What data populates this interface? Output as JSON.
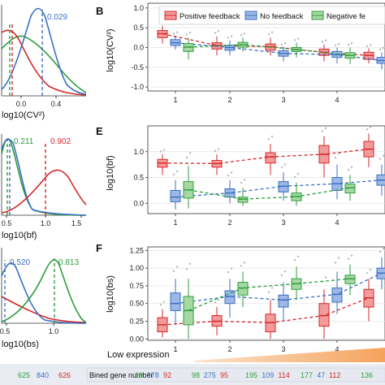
{
  "colors": {
    "positive": "#d62728",
    "none": "#3b6fc2",
    "negative": "#2e9e3e",
    "positive_fill": "#f29b9b",
    "none_fill": "#9db8e6",
    "negative_fill": "#a6d8a3",
    "arrow": "#f5a35c"
  },
  "panel_labels": {
    "B": "B",
    "E": "E",
    "F": "F"
  },
  "left": {
    "a": {
      "xlabel": "log10(CV²)",
      "xticks": [
        "0.0",
        "0.4"
      ],
      "annotation": "0.029"
    },
    "d": {
      "xlabel": "log10(bf)",
      "xticks": [
        "0.5",
        "1.0",
        "1.5"
      ],
      "annotations": [
        "0.211",
        "0.902"
      ]
    },
    "g": {
      "xlabel": "log10(bs)",
      "xticks": [
        "0.5",
        "1.0"
      ],
      "annotations": [
        "0.520",
        "0.813"
      ]
    },
    "totals": [
      "625",
      "840",
      "626"
    ]
  },
  "legend": [
    "Positive feedback",
    "No feedback",
    "Negative fe"
  ],
  "low_expression": "Low expression",
  "bined_label": "Bined gene number",
  "bined_counts": [
    [
      "19",
      "378",
      "92"
    ],
    [
      "98",
      "275",
      "95"
    ],
    [
      "195",
      "109",
      "114"
    ],
    [
      "177",
      "47",
      "112"
    ],
    [
      "136"
    ]
  ],
  "chart_data": [
    {
      "type": "box",
      "panel": "B",
      "ylabel": "log10(CV²)",
      "xticks": [
        "1",
        "2",
        "3",
        "4"
      ],
      "yticks": [
        "-1.0",
        "-0.5",
        "0.0",
        "0.5",
        "1.0"
      ],
      "ylim": [
        -1.1,
        1.12
      ],
      "series": [
        {
          "name": "Positive feedback",
          "medians": [
            0.35,
            0.05,
            0.02,
            -0.12,
            -0.2
          ],
          "q1": [
            0.25,
            -0.04,
            -0.07,
            -0.2,
            -0.3
          ],
          "q3": [
            0.43,
            0.12,
            0.09,
            -0.04,
            -0.12
          ],
          "lo": [
            0.1,
            -0.2,
            -0.2,
            -0.35,
            -0.4
          ],
          "hi": [
            0.55,
            0.28,
            0.25,
            0.08,
            -0.02
          ]
        },
        {
          "name": "No feedback",
          "medians": [
            0.12,
            0.0,
            -0.15,
            -0.18,
            -0.33
          ],
          "q1": [
            0.05,
            -0.07,
            -0.22,
            -0.25,
            -0.4
          ],
          "q3": [
            0.2,
            0.06,
            -0.08,
            -0.1,
            -0.25
          ],
          "lo": [
            -0.05,
            -0.2,
            -0.35,
            -0.4,
            -0.55
          ],
          "hi": [
            0.3,
            0.18,
            0.02,
            0.0,
            -0.12
          ]
        },
        {
          "name": "Negative feedback",
          "medians": [
            0.01,
            0.07,
            -0.05,
            -0.2,
            -0.4
          ],
          "q1": [
            -0.1,
            0.01,
            -0.1,
            -0.27,
            -0.47
          ],
          "q3": [
            0.1,
            0.13,
            0.0,
            -0.13,
            -0.33
          ],
          "lo": [
            -0.3,
            -0.1,
            -0.25,
            -0.42,
            -0.6
          ],
          "hi": [
            0.25,
            0.25,
            0.12,
            0.0,
            -0.2
          ]
        }
      ]
    },
    {
      "type": "box",
      "panel": "E",
      "ylabel": "log10(bf)",
      "xticks": [
        "1",
        "2",
        "3",
        "4"
      ],
      "yticks": [
        "0.0",
        "0.5",
        "1.0"
      ],
      "ylim": [
        -0.2,
        1.5
      ],
      "series": [
        {
          "name": "Positive feedback",
          "medians": [
            0.78,
            0.77,
            0.9,
            0.95,
            1.05
          ],
          "q1": [
            0.7,
            0.7,
            0.78,
            0.78,
            0.9
          ],
          "q3": [
            0.85,
            0.83,
            0.98,
            1.12,
            1.2
          ],
          "lo": [
            0.55,
            0.55,
            0.55,
            0.5,
            0.7
          ],
          "hi": [
            0.95,
            0.95,
            1.15,
            1.3,
            1.35
          ]
        },
        {
          "name": "No feedback",
          "medians": [
            0.12,
            0.2,
            0.33,
            0.38,
            0.45
          ],
          "q1": [
            0.03,
            0.12,
            0.22,
            0.25,
            0.35
          ],
          "q3": [
            0.25,
            0.28,
            0.42,
            0.5,
            0.55
          ],
          "lo": [
            -0.12,
            0.0,
            0.05,
            0.08,
            0.15
          ],
          "hi": [
            0.45,
            0.45,
            0.6,
            0.75,
            0.75
          ]
        },
        {
          "name": "Negative feedback",
          "medians": [
            0.26,
            0.08,
            0.13,
            0.3,
            0.4
          ],
          "q1": [
            0.1,
            0.02,
            0.05,
            0.2,
            0.32
          ],
          "q3": [
            0.42,
            0.12,
            0.2,
            0.37,
            0.48
          ],
          "lo": [
            -0.1,
            -0.05,
            -0.05,
            0.05,
            0.1
          ],
          "hi": [
            0.72,
            0.3,
            0.4,
            0.55,
            0.65
          ]
        }
      ]
    },
    {
      "type": "box",
      "panel": "F",
      "ylabel": "log10(bs)",
      "xticks": [
        "1",
        "2",
        "3",
        "4"
      ],
      "yticks": [
        "0.00",
        "0.25",
        "0.50",
        "0.75",
        "1.00",
        "1.25"
      ],
      "ylim": [
        -0.02,
        1.3
      ],
      "series": [
        {
          "name": "Positive feedback",
          "medians": [
            0.2,
            0.25,
            0.23,
            0.33,
            0.58
          ],
          "q1": [
            0.1,
            0.18,
            0.1,
            0.18,
            0.45
          ],
          "q3": [
            0.3,
            0.33,
            0.35,
            0.5,
            0.7
          ],
          "lo": [
            0.02,
            0.05,
            0.0,
            0.0,
            0.25
          ],
          "hi": [
            0.42,
            0.45,
            0.55,
            0.7,
            0.85
          ]
        },
        {
          "name": "No feedback",
          "medians": [
            0.5,
            0.6,
            0.55,
            0.63,
            0.93
          ],
          "q1": [
            0.4,
            0.5,
            0.45,
            0.52,
            0.85
          ],
          "q3": [
            0.65,
            0.68,
            0.62,
            0.72,
            1.0
          ],
          "lo": [
            0.2,
            0.3,
            0.25,
            0.35,
            0.7
          ],
          "hi": [
            0.85,
            0.85,
            0.8,
            0.95,
            1.15
          ]
        },
        {
          "name": "Negative feedback",
          "medians": [
            0.4,
            0.72,
            0.78,
            0.85,
            1.0
          ],
          "q1": [
            0.2,
            0.62,
            0.7,
            0.78,
            0.92
          ],
          "q3": [
            0.6,
            0.8,
            0.85,
            0.9,
            1.08
          ],
          "lo": [
            0.0,
            0.45,
            0.55,
            0.62,
            0.8
          ],
          "hi": [
            0.85,
            0.95,
            1.02,
            1.05,
            1.2
          ]
        }
      ]
    }
  ]
}
